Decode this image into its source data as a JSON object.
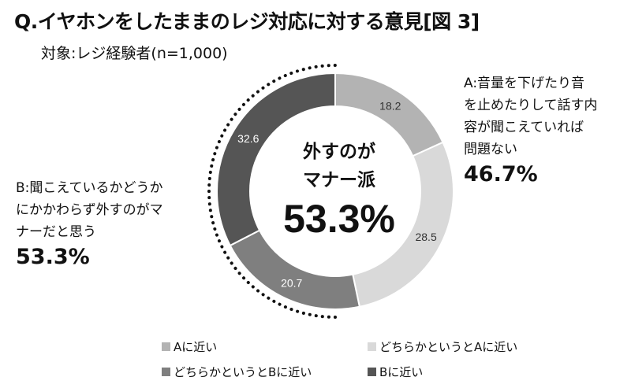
{
  "title": "Q.イヤホンをしたままのレジ対応に対する意見[図 3]",
  "subtitle": "対象:レジ経験者(n=1,000)",
  "chart_data": {
    "type": "pie",
    "categories": [
      "Aに近い",
      "どちらかというとAに近い",
      "どちらかというとBに近い",
      "Bに近い"
    ],
    "values": [
      18.2,
      28.5,
      20.7,
      32.6
    ],
    "colors": [
      "#b3b3b3",
      "#d9d9d9",
      "#7f7f7f",
      "#555555"
    ],
    "label_colors": [
      "#333333",
      "#333333",
      "#ffffff",
      "#ffffff"
    ],
    "style": "donut",
    "legend": [
      "Aに近い",
      "どちらかというとAに近い",
      "どちらかというとBに近い",
      "Bに近い"
    ],
    "legend_position": "bottom"
  },
  "side_a": {
    "lines": [
      "A:音量を下げたり音",
      "を止めたりして話す内",
      "容が聞こえていれば",
      "問題ない"
    ],
    "percent": "46.7%"
  },
  "side_b": {
    "lines": [
      "B:聞こえているかどうか",
      "にかかわらず外すのがマ",
      "ナーだと思う"
    ],
    "percent": "53.3%"
  },
  "center": {
    "lines": [
      "外すのが",
      "マナー派"
    ],
    "value": "53.3%"
  }
}
